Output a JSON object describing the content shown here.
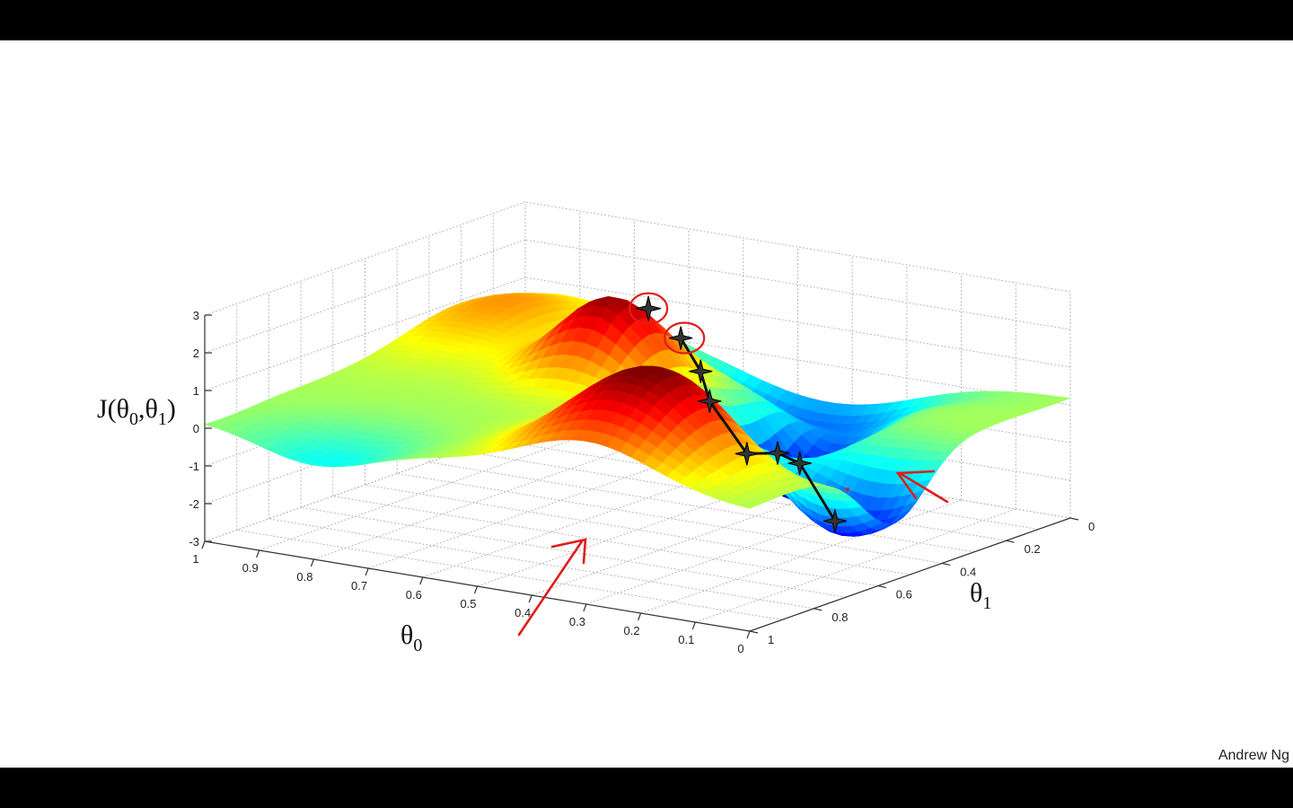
{
  "slide": {
    "credit": "Andrew Ng"
  },
  "chart_data": {
    "type": "surface",
    "z_label_text": "J(θ0,θ1)",
    "z_label": {
      "pre": "J(θ",
      "s1": "0",
      "mid": ",θ",
      "s2": "1",
      "post": ")"
    },
    "x_label": {
      "main": "θ",
      "sub": "0"
    },
    "y_label": {
      "main": "θ",
      "sub": "1"
    },
    "x_ticks": [
      "1",
      "0.9",
      "0.8",
      "0.7",
      "0.6",
      "0.5",
      "0.4",
      "0.3",
      "0.2",
      "0.1",
      "0"
    ],
    "y_ticks": [
      "0",
      "0.2",
      "0.4",
      "0.6",
      "0.8",
      "1"
    ],
    "z_ticks": [
      "3",
      "2",
      "1",
      "0",
      "-1",
      "-2",
      "-3"
    ],
    "xlim": [
      0,
      1
    ],
    "ylim": [
      0,
      1
    ],
    "zlim": [
      -3,
      3
    ],
    "colormap": "jet",
    "grid": true,
    "path": [
      {
        "theta0": 0.55,
        "theta1": 0.28
      },
      {
        "theta0": 0.49,
        "theta1": 0.32
      },
      {
        "theta0": 0.45,
        "theta1": 0.36
      },
      {
        "theta0": 0.37,
        "theta1": 0.38
      },
      {
        "theta0": 0.29,
        "theta1": 0.42
      },
      {
        "theta0": 0.22,
        "theta1": 0.47
      },
      {
        "theta0": 0.12,
        "theta1": 0.53
      }
    ],
    "start_point": {
      "theta0": 0.58,
      "theta1": 0.33
    },
    "annotation_colors": {
      "path": "#111111",
      "circle": "#e21b1b",
      "arrow": "#e21b1b"
    }
  }
}
